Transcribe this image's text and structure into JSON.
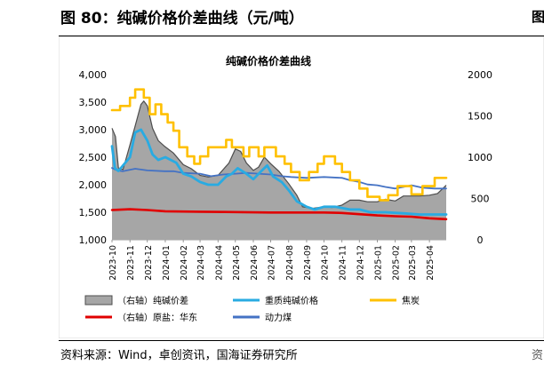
{
  "figure_title": "图 80：纯碱价格价差曲线（元/吨）",
  "right_cut_mark": "图",
  "source": "资料来源：Wind，卓创资讯，国海证券研究所",
  "source_right_mark": "资",
  "colors": {
    "spread_fill": "#a6a6a6",
    "spread_stroke": "#4d4d4d",
    "heavy_soda": "#29abe2",
    "coke": "#ffc000",
    "salt": "#e00000",
    "thermal_coal": "#4472c4"
  },
  "chart_data": {
    "type": "line",
    "title": "纯碱价格价差曲线",
    "x_ticks": [
      "2023-10",
      "2023-11",
      "2023-12",
      "2024-01",
      "2024-02",
      "2024-03",
      "2024-04",
      "2024-05",
      "2024-06",
      "2024-07",
      "2024-08",
      "2024-09",
      "2024-10",
      "2024-11",
      "2024-12",
      "2025-01",
      "2025-02",
      "2025-03",
      "2025-04"
    ],
    "x_range": [
      "2023-10-01",
      "2025-04-30"
    ],
    "y_left": {
      "range": [
        1000,
        4000
      ],
      "ticks": [
        "1,000",
        "1,500",
        "2,000",
        "2,500",
        "3,000",
        "3,500",
        "4,000"
      ]
    },
    "y_right": {
      "range": [
        0,
        2000
      ],
      "ticks": [
        "0",
        "500",
        "1000",
        "1500",
        "2000"
      ]
    },
    "series": [
      {
        "name": "（右轴）纯碱价差",
        "axis": "right",
        "style": "area",
        "color_key": "spread_fill",
        "points": [
          [
            "2023-10-01",
            1350
          ],
          [
            "2023-10-07",
            1250
          ],
          [
            "2023-10-12",
            870
          ],
          [
            "2023-10-20",
            850
          ],
          [
            "2023-11-01",
            1150
          ],
          [
            "2023-11-10",
            1380
          ],
          [
            "2023-11-20",
            1640
          ],
          [
            "2023-11-25",
            1680
          ],
          [
            "2023-12-01",
            1620
          ],
          [
            "2023-12-10",
            1350
          ],
          [
            "2023-12-20",
            1200
          ],
          [
            "2023-12-31",
            1130
          ],
          [
            "2024-01-15",
            1050
          ],
          [
            "2024-02-01",
            910
          ],
          [
            "2024-02-15",
            860
          ],
          [
            "2024-03-01",
            780
          ],
          [
            "2024-03-15",
            760
          ],
          [
            "2024-04-01",
            780
          ],
          [
            "2024-04-10",
            850
          ],
          [
            "2024-04-20",
            930
          ],
          [
            "2024-05-01",
            1100
          ],
          [
            "2024-05-10",
            1070
          ],
          [
            "2024-05-20",
            930
          ],
          [
            "2024-06-01",
            840
          ],
          [
            "2024-06-10",
            880
          ],
          [
            "2024-06-20",
            1000
          ],
          [
            "2024-07-01",
            920
          ],
          [
            "2024-07-15",
            830
          ],
          [
            "2024-08-01",
            680
          ],
          [
            "2024-08-15",
            540
          ],
          [
            "2024-08-25",
            400
          ],
          [
            "2024-09-10",
            380
          ],
          [
            "2024-10-01",
            400
          ],
          [
            "2024-10-15",
            390
          ],
          [
            "2024-11-01",
            420
          ],
          [
            "2024-11-15",
            480
          ],
          [
            "2024-12-01",
            480
          ],
          [
            "2024-12-15",
            460
          ],
          [
            "2025-01-01",
            460
          ],
          [
            "2025-01-15",
            490
          ],
          [
            "2025-02-01",
            470
          ],
          [
            "2025-02-15",
            530
          ],
          [
            "2025-03-01",
            530
          ],
          [
            "2025-03-15",
            530
          ],
          [
            "2025-04-01",
            540
          ],
          [
            "2025-04-15",
            560
          ],
          [
            "2025-04-30",
            660
          ]
        ]
      },
      {
        "name": "重质纯碱价格",
        "axis": "left",
        "style": "line",
        "color_key": "heavy_soda",
        "points": [
          [
            "2023-10-01",
            2700
          ],
          [
            "2023-10-06",
            2300
          ],
          [
            "2023-10-12",
            2250
          ],
          [
            "2023-11-01",
            2500
          ],
          [
            "2023-11-10",
            2950
          ],
          [
            "2023-11-20",
            3000
          ],
          [
            "2023-12-01",
            2800
          ],
          [
            "2023-12-10",
            2550
          ],
          [
            "2023-12-20",
            2450
          ],
          [
            "2024-01-01",
            2500
          ],
          [
            "2024-01-20",
            2400
          ],
          [
            "2024-02-01",
            2200
          ],
          [
            "2024-02-15",
            2150
          ],
          [
            "2024-03-01",
            2050
          ],
          [
            "2024-03-15",
            2000
          ],
          [
            "2024-04-01",
            2000
          ],
          [
            "2024-04-15",
            2150
          ],
          [
            "2024-04-25",
            2200
          ],
          [
            "2024-05-05",
            2300
          ],
          [
            "2024-05-20",
            2200
          ],
          [
            "2024-06-01",
            2100
          ],
          [
            "2024-06-15",
            2250
          ],
          [
            "2024-06-25",
            2350
          ],
          [
            "2024-07-05",
            2150
          ],
          [
            "2024-07-20",
            2050
          ],
          [
            "2024-08-01",
            1900
          ],
          [
            "2024-08-15",
            1700
          ],
          [
            "2024-09-01",
            1600
          ],
          [
            "2024-09-15",
            1550
          ],
          [
            "2024-10-01",
            1600
          ],
          [
            "2024-10-20",
            1600
          ],
          [
            "2024-11-15",
            1550
          ],
          [
            "2024-12-01",
            1550
          ],
          [
            "2024-12-20",
            1500
          ],
          [
            "2025-01-15",
            1500
          ],
          [
            "2025-02-15",
            1480
          ],
          [
            "2025-03-15",
            1460
          ],
          [
            "2025-04-30",
            1460
          ]
        ]
      },
      {
        "name": "焦炭",
        "axis": "right",
        "style": "step",
        "color_key": "coke",
        "points": [
          [
            "2023-10-01",
            1570
          ],
          [
            "2023-10-15",
            1570
          ],
          [
            "2023-10-15",
            1620
          ],
          [
            "2023-11-01",
            1620
          ],
          [
            "2023-11-01",
            1720
          ],
          [
            "2023-11-10",
            1720
          ],
          [
            "2023-11-10",
            1820
          ],
          [
            "2023-11-25",
            1820
          ],
          [
            "2023-11-25",
            1720
          ],
          [
            "2023-12-05",
            1720
          ],
          [
            "2023-12-05",
            1520
          ],
          [
            "2023-12-15",
            1520
          ],
          [
            "2023-12-15",
            1640
          ],
          [
            "2023-12-25",
            1640
          ],
          [
            "2023-12-25",
            1520
          ],
          [
            "2024-01-05",
            1520
          ],
          [
            "2024-01-05",
            1420
          ],
          [
            "2024-01-15",
            1420
          ],
          [
            "2024-01-15",
            1320
          ],
          [
            "2024-01-25",
            1320
          ],
          [
            "2024-01-25",
            1120
          ],
          [
            "2024-02-08",
            1120
          ],
          [
            "2024-02-08",
            1010
          ],
          [
            "2024-02-20",
            1010
          ],
          [
            "2024-02-20",
            920
          ],
          [
            "2024-03-01",
            920
          ],
          [
            "2024-03-01",
            1010
          ],
          [
            "2024-03-15",
            1010
          ],
          [
            "2024-03-15",
            1120
          ],
          [
            "2024-04-15",
            1120
          ],
          [
            "2024-04-15",
            1210
          ],
          [
            "2024-04-25",
            1210
          ],
          [
            "2024-04-25",
            1120
          ],
          [
            "2024-05-15",
            1120
          ],
          [
            "2024-05-15",
            1010
          ],
          [
            "2024-05-25",
            1010
          ],
          [
            "2024-05-25",
            1120
          ],
          [
            "2024-06-10",
            1120
          ],
          [
            "2024-06-10",
            1010
          ],
          [
            "2024-06-20",
            1010
          ],
          [
            "2024-06-20",
            1120
          ],
          [
            "2024-07-10",
            1120
          ],
          [
            "2024-07-10",
            1010
          ],
          [
            "2024-07-25",
            1010
          ],
          [
            "2024-07-25",
            920
          ],
          [
            "2024-08-05",
            920
          ],
          [
            "2024-08-05",
            820
          ],
          [
            "2024-08-20",
            820
          ],
          [
            "2024-08-20",
            720
          ],
          [
            "2024-09-05",
            720
          ],
          [
            "2024-09-05",
            820
          ],
          [
            "2024-09-20",
            820
          ],
          [
            "2024-09-20",
            920
          ],
          [
            "2024-10-01",
            920
          ],
          [
            "2024-10-01",
            1010
          ],
          [
            "2024-10-20",
            1010
          ],
          [
            "2024-10-20",
            920
          ],
          [
            "2024-11-01",
            920
          ],
          [
            "2024-11-01",
            820
          ],
          [
            "2024-11-15",
            820
          ],
          [
            "2024-11-15",
            720
          ],
          [
            "2024-12-01",
            720
          ],
          [
            "2024-12-01",
            620
          ],
          [
            "2024-12-15",
            620
          ],
          [
            "2024-12-15",
            520
          ],
          [
            "2025-01-05",
            520
          ],
          [
            "2025-01-05",
            480
          ],
          [
            "2025-01-20",
            480
          ],
          [
            "2025-01-20",
            540
          ],
          [
            "2025-02-05",
            540
          ],
          [
            "2025-02-05",
            650
          ],
          [
            "2025-03-01",
            650
          ],
          [
            "2025-03-01",
            550
          ],
          [
            "2025-03-20",
            550
          ],
          [
            "2025-03-20",
            650
          ],
          [
            "2025-04-10",
            650
          ],
          [
            "2025-04-10",
            750
          ],
          [
            "2025-04-30",
            750
          ]
        ]
      },
      {
        "name": "（右轴）原盐：华东",
        "axis": "right",
        "style": "line",
        "color_key": "salt",
        "points": [
          [
            "2023-10-01",
            360
          ],
          [
            "2023-11-01",
            370
          ],
          [
            "2023-12-01",
            360
          ],
          [
            "2024-01-01",
            345
          ],
          [
            "2024-03-01",
            340
          ],
          [
            "2024-05-01",
            335
          ],
          [
            "2024-07-01",
            330
          ],
          [
            "2024-09-01",
            330
          ],
          [
            "2024-10-01",
            330
          ],
          [
            "2024-11-01",
            325
          ],
          [
            "2024-12-01",
            310
          ],
          [
            "2025-01-01",
            295
          ],
          [
            "2025-02-01",
            285
          ],
          [
            "2025-03-01",
            280
          ],
          [
            "2025-04-01",
            260
          ],
          [
            "2025-04-30",
            250
          ]
        ]
      },
      {
        "name": "动力煤",
        "axis": "right",
        "style": "line",
        "color_key": "thermal_coal",
        "points": [
          [
            "2023-10-01",
            870
          ],
          [
            "2023-10-10",
            840
          ],
          [
            "2023-10-20",
            830
          ],
          [
            "2023-11-10",
            860
          ],
          [
            "2023-12-01",
            840
          ],
          [
            "2023-12-31",
            830
          ],
          [
            "2024-01-15",
            830
          ],
          [
            "2024-02-01",
            810
          ],
          [
            "2024-03-01",
            800
          ],
          [
            "2024-03-20",
            770
          ],
          [
            "2024-04-10",
            790
          ],
          [
            "2024-05-01",
            800
          ],
          [
            "2024-05-20",
            810
          ],
          [
            "2024-06-10",
            800
          ],
          [
            "2024-07-01",
            790
          ],
          [
            "2024-07-20",
            770
          ],
          [
            "2024-08-05",
            760
          ],
          [
            "2024-09-01",
            750
          ],
          [
            "2024-10-01",
            760
          ],
          [
            "2024-11-01",
            750
          ],
          [
            "2024-11-15",
            720
          ],
          [
            "2024-12-01",
            700
          ],
          [
            "2024-12-15",
            670
          ],
          [
            "2025-01-01",
            660
          ],
          [
            "2025-01-15",
            640
          ],
          [
            "2025-02-01",
            620
          ],
          [
            "2025-02-15",
            640
          ],
          [
            "2025-03-01",
            660
          ],
          [
            "2025-03-20",
            630
          ],
          [
            "2025-04-10",
            620
          ],
          [
            "2025-04-30",
            620
          ]
        ]
      }
    ],
    "legend": [
      {
        "label": "（右轴）纯碱价差",
        "color_key": "spread_fill",
        "kind": "box"
      },
      {
        "label": "重质纯碱价格",
        "color_key": "heavy_soda",
        "kind": "line"
      },
      {
        "label": "焦炭",
        "color_key": "coke",
        "kind": "line"
      },
      {
        "label": "（右轴）原盐：华东",
        "color_key": "salt",
        "kind": "line"
      },
      {
        "label": "动力煤",
        "color_key": "thermal_coal",
        "kind": "line"
      }
    ]
  }
}
